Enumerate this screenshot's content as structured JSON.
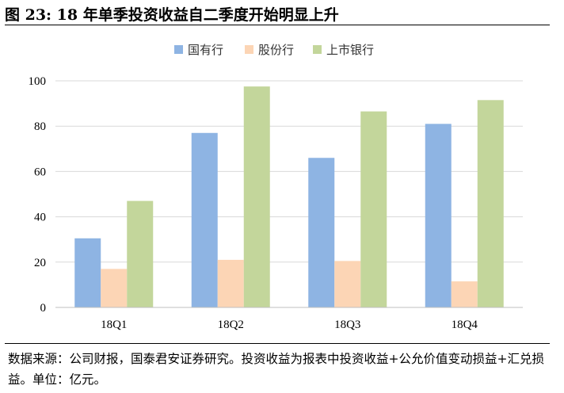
{
  "title": "图 23:  18 年单季投资收益自二季度开始明显上升",
  "source": "数据来源：公司财报，国泰君安证券研究。投资收益为报表中投资收益+公允价值变动损益+汇兑损益。单位：亿元。",
  "chart_data": {
    "type": "bar",
    "categories": [
      "18Q1",
      "18Q2",
      "18Q3",
      "18Q4"
    ],
    "series": [
      {
        "name": "国有行",
        "color": "#8eb4e3",
        "values": [
          30.5,
          77,
          66,
          81
        ]
      },
      {
        "name": "股份行",
        "color": "#fcd5b5",
        "values": [
          17,
          21,
          20.5,
          11.5
        ]
      },
      {
        "name": "上市银行",
        "color": "#c3d69b",
        "values": [
          47,
          97.5,
          86.5,
          91.5
        ]
      }
    ],
    "ylim": [
      0,
      100
    ],
    "yticks": [
      0,
      20,
      40,
      60,
      80,
      100
    ],
    "grid": true,
    "legend_position": "top-center"
  }
}
